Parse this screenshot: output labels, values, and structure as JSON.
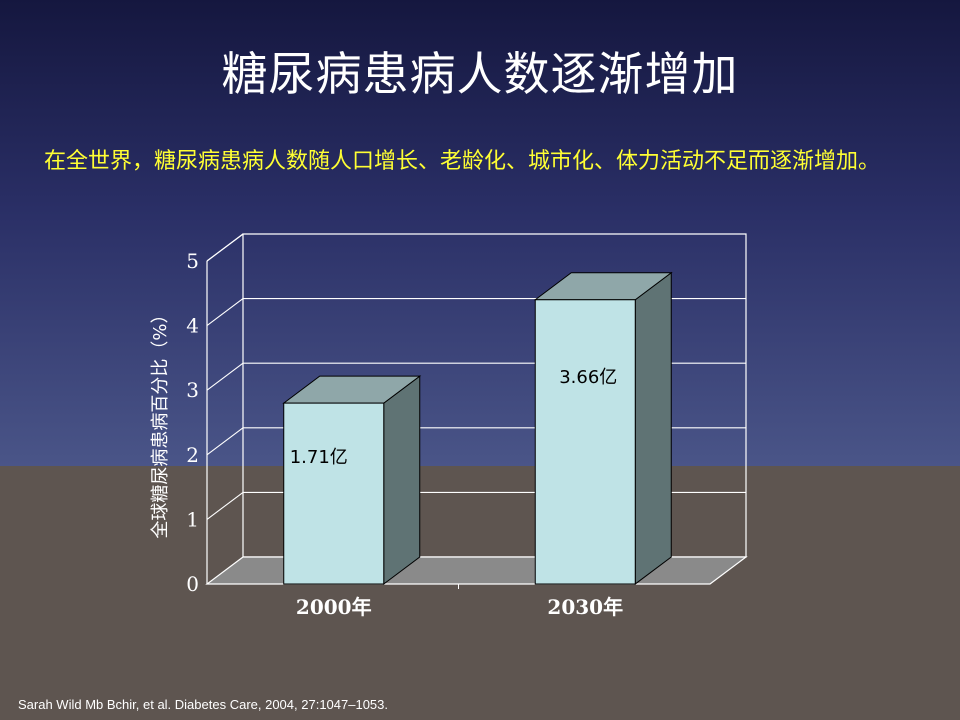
{
  "slide": {
    "title": "糖尿病患病人数逐渐增加",
    "subtitle": "在全世界，糖尿病患病人数随人口增长、老龄化、城市化、体力活动不足而逐渐增加。",
    "source": "Sarah Wild Mb Bchir, et al. Diabetes Care, 2004, 27:1047–1053."
  },
  "colors": {
    "bar_front": "#bfe3e6",
    "bar_top": "#8fa7a9",
    "bar_side": "#5f7374",
    "floor": "#8a8a8a",
    "grid": "#ffffff",
    "title_text": "#ffffff",
    "subtitle_text": "#ffff33"
  },
  "chart_data": {
    "type": "bar",
    "style": "3d",
    "categories": [
      "2000年",
      "2030年"
    ],
    "values": [
      2.8,
      4.4
    ],
    "data_labels": [
      "1.71亿",
      "3.66亿"
    ],
    "ylabel": "全球糖尿病患病百分比（%）",
    "xlabel": "",
    "ylim": [
      0,
      5
    ],
    "yticks": [
      "0",
      "1",
      "2",
      "3",
      "4",
      "5"
    ],
    "grid": true,
    "legend": "none"
  }
}
